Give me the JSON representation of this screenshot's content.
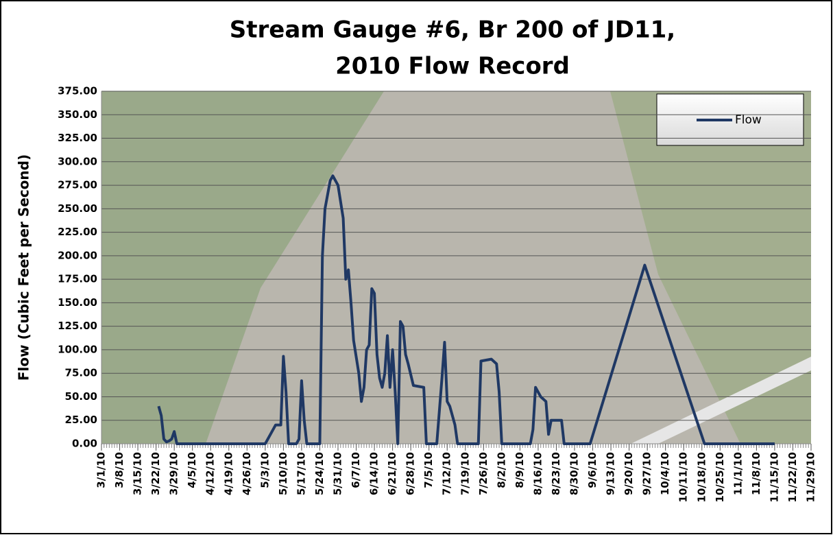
{
  "chart_data": {
    "type": "line",
    "title": [
      "Stream Gauge #6, Br 200 of JD11,",
      "2010 Flow Record"
    ],
    "y_label": "Flow (Cubic Feet per Second)",
    "legend_position": "top-right",
    "grid": true,
    "ylim": [
      0,
      375
    ],
    "yticks": [
      {
        "value": 0,
        "label": "0.00"
      },
      {
        "value": 25,
        "label": "25.00"
      },
      {
        "value": 50,
        "label": "50.00"
      },
      {
        "value": 75,
        "label": "75.00"
      },
      {
        "value": 100,
        "label": "100.00"
      },
      {
        "value": 125,
        "label": "125.00"
      },
      {
        "value": 150,
        "label": "150.00"
      },
      {
        "value": 175,
        "label": "175.00"
      },
      {
        "value": 200,
        "label": "200.00"
      },
      {
        "value": 225,
        "label": "225.00"
      },
      {
        "value": 250,
        "label": "250.00"
      },
      {
        "value": 275,
        "label": "275.00"
      },
      {
        "value": 300,
        "label": "300.00"
      },
      {
        "value": 325,
        "label": "325.00"
      },
      {
        "value": 350,
        "label": "350.00"
      },
      {
        "value": 375,
        "label": "375.00"
      }
    ],
    "xlim": [
      "3/1/10",
      "11/29/10"
    ],
    "xticks": [
      "3/1/10",
      "3/8/10",
      "3/15/10",
      "3/22/10",
      "3/29/10",
      "4/5/10",
      "4/12/10",
      "4/19/10",
      "4/26/10",
      "5/3/10",
      "5/10/10",
      "5/17/10",
      "5/24/10",
      "5/31/10",
      "6/7/10",
      "6/14/10",
      "6/21/10",
      "6/28/10",
      "7/5/10",
      "7/12/10",
      "7/19/10",
      "7/26/10",
      "8/2/10",
      "8/9/10",
      "8/16/10",
      "8/23/10",
      "8/30/10",
      "9/6/10",
      "9/13/10",
      "9/20/10",
      "9/27/10",
      "10/4/10",
      "10/11/10",
      "10/18/10",
      "10/25/10",
      "11/1/10",
      "11/8/10",
      "11/15/10",
      "11/22/10",
      "11/29/10"
    ],
    "x": [
      "3/23/10",
      "3/24/10",
      "3/25/10",
      "3/26/10",
      "3/27/10",
      "3/28/10",
      "3/29/10",
      "3/30/10",
      "5/3/10",
      "5/5/10",
      "5/7/10",
      "5/9/10",
      "5/10/10",
      "5/11/10",
      "5/12/10",
      "5/15/10",
      "5/16/10",
      "5/17/10",
      "5/18/10",
      "5/19/10",
      "5/24/10",
      "5/25/10",
      "5/26/10",
      "5/28/10",
      "5/29/10",
      "5/31/10",
      "6/2/10",
      "6/3/10",
      "6/4/10",
      "6/5/10",
      "6/6/10",
      "6/8/10",
      "6/9/10",
      "6/10/10",
      "6/11/10",
      "6/12/10",
      "6/13/10",
      "6/14/10",
      "6/15/10",
      "6/16/10",
      "6/17/10",
      "6/18/10",
      "6/19/10",
      "6/20/10",
      "6/21/10",
      "6/22/10",
      "6/23/10",
      "6/24/10",
      "6/25/10",
      "6/26/10",
      "6/27/10",
      "6/29/10",
      "7/3/10",
      "7/4/10",
      "7/8/10",
      "7/10/10",
      "7/11/10",
      "7/12/10",
      "7/13/10",
      "7/15/10",
      "7/16/10",
      "7/24/10",
      "7/25/10",
      "7/29/10",
      "7/31/10",
      "8/1/10",
      "8/2/10",
      "8/13/10",
      "8/14/10",
      "8/15/10",
      "8/17/10",
      "8/19/10",
      "8/20/10",
      "8/21/10",
      "8/25/10",
      "8/26/10",
      "9/5/10",
      "9/26/10",
      "10/19/10",
      "11/15/10"
    ],
    "series": [
      {
        "name": "Flow",
        "color": "#1f3864",
        "values": [
          40,
          30,
          5,
          2,
          3,
          5,
          13,
          0,
          0,
          10,
          20,
          20,
          93,
          55,
          0,
          0,
          5,
          67,
          25,
          0,
          0,
          200,
          250,
          280,
          285,
          275,
          240,
          175,
          185,
          150,
          110,
          75,
          45,
          60,
          100,
          105,
          165,
          160,
          95,
          70,
          60,
          75,
          115,
          60,
          100,
          55,
          0,
          130,
          125,
          95,
          85,
          62,
          60,
          0,
          0,
          70,
          108,
          45,
          40,
          20,
          0,
          0,
          88,
          90,
          85,
          55,
          0,
          0,
          15,
          60,
          50,
          45,
          10,
          25,
          25,
          0,
          0,
          190,
          0,
          0
        ]
      }
    ]
  }
}
